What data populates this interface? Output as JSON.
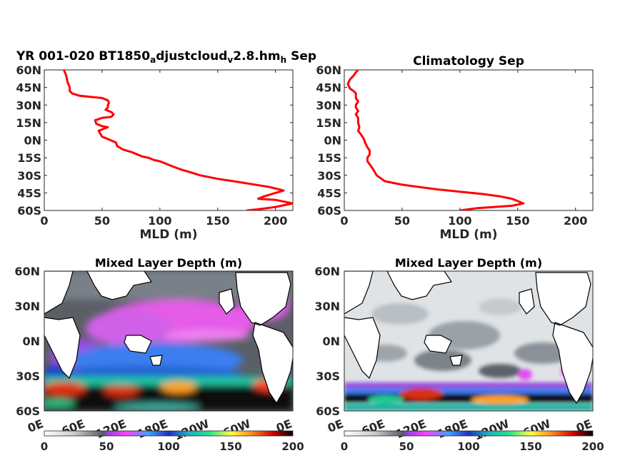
{
  "chart_data": [
    {
      "type": "line",
      "title": "YR 001-020 BT1850_adjustcloud_v2.8.hm_h Sep",
      "title_parts": [
        "YR 001-020 BT1850",
        "a",
        "djustcloud",
        "v",
        "2.8.hm",
        "h",
        " Sep"
      ],
      "xlabel": "MLD (m)",
      "xlim": [
        0,
        215
      ],
      "ylim": [
        -60,
        60
      ],
      "xticks": [
        "0",
        "50",
        "100",
        "150",
        "200"
      ],
      "yticks": [
        "60N",
        "45N",
        "30N",
        "15N",
        "0N",
        "15S",
        "30S",
        "45S",
        "60S"
      ],
      "series": [
        {
          "color": "#ff0000",
          "x": [
            17,
            19,
            20,
            22,
            22,
            24,
            30,
            40,
            50,
            55,
            56,
            55,
            55,
            54,
            53,
            58,
            60,
            58,
            50,
            44,
            45,
            50,
            55,
            52,
            47,
            50,
            55,
            62,
            63,
            68,
            75,
            80,
            85,
            90,
            95,
            100,
            105,
            110,
            118,
            125,
            135,
            150,
            170,
            195,
            207,
            200,
            190,
            185,
            200,
            215,
            200,
            185,
            175
          ],
          "y": [
            60,
            55,
            50,
            45,
            42,
            40,
            38,
            37,
            36,
            34,
            32,
            30,
            28,
            27,
            26,
            24,
            22,
            20,
            19,
            17,
            14,
            12,
            11,
            10,
            8,
            3,
            1,
            -2,
            -5,
            -8,
            -10,
            -12,
            -14,
            -15,
            -17,
            -18,
            -20,
            -22,
            -25,
            -27,
            -30,
            -33,
            -36,
            -40,
            -43,
            -45,
            -48,
            -50,
            -51,
            -54,
            -57,
            -59,
            -60
          ]
        }
      ]
    },
    {
      "type": "line",
      "title": "Climatology Sep",
      "xlabel": "MLD (m)",
      "xlim": [
        0,
        215
      ],
      "ylim": [
        -60,
        60
      ],
      "xticks": [
        "0",
        "50",
        "100",
        "150",
        "200"
      ],
      "yticks": [
        "60N",
        "45N",
        "30N",
        "15N",
        "0N",
        "15S",
        "30S",
        "45S",
        "60S"
      ],
      "series": [
        {
          "color": "#ff0000",
          "x": [
            12,
            10,
            8,
            5,
            3,
            5,
            8,
            10,
            10,
            12,
            10,
            10,
            12,
            10,
            12,
            12,
            13,
            12,
            15,
            17,
            18,
            20,
            22,
            22,
            20,
            20,
            23,
            25,
            28,
            35,
            50,
            65,
            80,
            100,
            120,
            135,
            145,
            150,
            155,
            145,
            130,
            115,
            100
          ],
          "y": [
            60,
            58,
            55,
            52,
            48,
            44,
            42,
            40,
            36,
            33,
            30,
            28,
            25,
            22,
            19,
            15,
            11,
            8,
            4,
            1,
            -2,
            -6,
            -9,
            -12,
            -15,
            -18,
            -22,
            -25,
            -30,
            -35,
            -38,
            -40,
            -42,
            -44,
            -46,
            -48,
            -50,
            -52,
            -54,
            -56,
            -57,
            -58,
            -60
          ]
        }
      ]
    },
    {
      "type": "heatmap",
      "title": "Mixed Layer Depth (m)",
      "xticks": [
        "0E",
        "60E",
        "120E",
        "180E",
        "120W",
        "60W",
        "0E"
      ],
      "yticks": [
        "60N",
        "30N",
        "0N",
        "30S",
        "60S"
      ],
      "colorbar_ticks": [
        "0",
        "50",
        "100",
        "150",
        "200"
      ],
      "colorbar_range": [
        0,
        200
      ]
    },
    {
      "type": "heatmap",
      "title": "Mixed Layer Depth (m)",
      "xticks": [
        "0E",
        "60E",
        "120E",
        "180E",
        "120W",
        "60W",
        "0E"
      ],
      "yticks": [
        "60N",
        "30N",
        "0N",
        "30S",
        "60S"
      ],
      "colorbar_ticks": [
        "0",
        "50",
        "100",
        "150",
        "200"
      ],
      "colorbar_range": [
        0,
        200
      ]
    }
  ]
}
